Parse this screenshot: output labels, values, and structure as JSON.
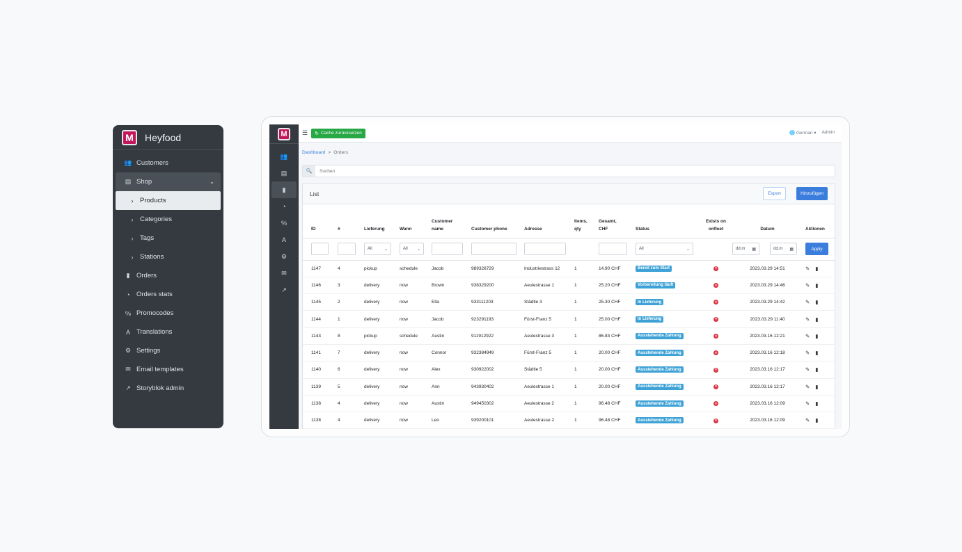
{
  "sidebar_card": {
    "brand_letter": "M",
    "brand_name": "Heyfood",
    "items": [
      {
        "icon": "users-icon",
        "label": "Customers"
      },
      {
        "icon": "store-icon",
        "label": "Shop"
      },
      {
        "icon": "chevron-right-icon",
        "label": "Products"
      },
      {
        "icon": "chevron-right-icon",
        "label": "Categories"
      },
      {
        "icon": "chevron-right-icon",
        "label": "Tags"
      },
      {
        "icon": "chevron-right-icon",
        "label": "Stations"
      },
      {
        "icon": "file-invoice-icon",
        "label": "Orders"
      },
      {
        "icon": "chart-pie-icon",
        "label": "Orders stats"
      },
      {
        "icon": "percent-icon",
        "label": "Promocodes"
      },
      {
        "icon": "translate-icon",
        "label": "Translations"
      },
      {
        "icon": "cogs-icon",
        "label": "Settings"
      },
      {
        "icon": "envelope-icon",
        "label": "Email templates"
      },
      {
        "icon": "external-link-icon",
        "label": "Storyblok admin"
      }
    ]
  },
  "app": {
    "logo_letter": "M",
    "topbar": {
      "cache_button": "Cache zurücksetzen",
      "language": "German",
      "user": "Admin"
    },
    "breadcrumb": {
      "root": "Dashboard",
      "separator": ">",
      "current": "Orders"
    },
    "search": {
      "placeholder": "Suchen"
    },
    "card": {
      "title": "List",
      "export_label": "Export",
      "add_label": "Hinzufügen",
      "columns": [
        "ID",
        "#",
        "Lieferung",
        "Wann",
        "Customer name",
        "Customer phone",
        "Adresse",
        "Items, qty",
        "Gesamt, CHF",
        "Status",
        "Exists on onfleet",
        "Datum",
        "Aktionen"
      ],
      "filters": {
        "lieferung": "All",
        "wann": "All",
        "status": "All",
        "date_from": "dd.m",
        "date_to": "dd.m",
        "apply": "Apply"
      },
      "rows": [
        {
          "id": "1147",
          "num": "4",
          "lieferung": "pickup",
          "wann": "schedule",
          "name": "Jacob",
          "phone": "989328729",
          "adresse": "Industriestrass 12",
          "qty": "1",
          "total": "14.90 CHF",
          "status": "Bereit zum Start",
          "datum": "2023.03.29 14:51"
        },
        {
          "id": "1146",
          "num": "3",
          "lieferung": "delivery",
          "wann": "now",
          "name": "Brown",
          "phone": "938329200",
          "adresse": "Aeulestrasse 1",
          "qty": "1",
          "total": "25.20 CHF",
          "status": "Vorbereitung läuft",
          "datum": "2023.03.29 14:46"
        },
        {
          "id": "1145",
          "num": "2",
          "lieferung": "delivery",
          "wann": "now",
          "name": "Ella",
          "phone": "933111203",
          "adresse": "Städtle 3",
          "qty": "1",
          "total": "25.30 CHF",
          "status": "In Lieferung",
          "datum": "2023.03.29 14:42"
        },
        {
          "id": "1144",
          "num": "1",
          "lieferung": "delivery",
          "wann": "now",
          "name": "Jacob",
          "phone": "923291193",
          "adresse": "Fürst-Franz 5",
          "qty": "1",
          "total": "25.00 CHF",
          "status": "In Lieferung",
          "datum": "2023.03.29 11:40"
        },
        {
          "id": "1143",
          "num": "8",
          "lieferung": "pickup",
          "wann": "schedule",
          "name": "Austin",
          "phone": "911912922",
          "adresse": "Aeulestrasse 3",
          "qty": "1",
          "total": "86.83 CHF",
          "status": "Ausstehende Zahlung",
          "datum": "2023.03.16 12:21"
        },
        {
          "id": "1141",
          "num": "7",
          "lieferung": "delivery",
          "wann": "now",
          "name": "Connor",
          "phone": "932384949",
          "adresse": "Fürst-Franz 5",
          "qty": "1",
          "total": "20.00 CHF",
          "status": "Ausstehende Zahlung",
          "datum": "2023.03.16 12:18"
        },
        {
          "id": "1140",
          "num": "6",
          "lieferung": "delivery",
          "wann": "now",
          "name": "Alex",
          "phone": "930922002",
          "adresse": "Städtle 5",
          "qty": "1",
          "total": "20.00 CHF",
          "status": "Ausstehende Zahlung",
          "datum": "2023.03.16 12:17"
        },
        {
          "id": "1139",
          "num": "5",
          "lieferung": "delivery",
          "wann": "now",
          "name": "Ann",
          "phone": "943930402",
          "adresse": "Aeulestrasse 1",
          "qty": "1",
          "total": "20.00 CHF",
          "status": "Ausstehende Zahlung",
          "datum": "2023.03.16 12:17"
        },
        {
          "id": "1138",
          "num": "4",
          "lieferung": "delivery",
          "wann": "now",
          "name": "Austin",
          "phone": "949450302",
          "adresse": "Aeulestrasse 2",
          "qty": "1",
          "total": "96.48 CHF",
          "status": "Ausstehende Zahlung",
          "datum": "2023.03.16 12:09"
        },
        {
          "id": "1138",
          "num": "4",
          "lieferung": "delivery",
          "wann": "now",
          "name": "Leo",
          "phone": "939200101",
          "adresse": "Aeulestrasse 2",
          "qty": "1",
          "total": "96.48 CHF",
          "status": "Ausstehende Zahlung",
          "datum": "2023.03.16 12:09"
        }
      ]
    }
  },
  "colors": {
    "sidebar_bg": "#343a40",
    "primary": "#3b7ddd",
    "success": "#28a745",
    "badge": "#3ea2d6",
    "danger": "#dc3545"
  }
}
